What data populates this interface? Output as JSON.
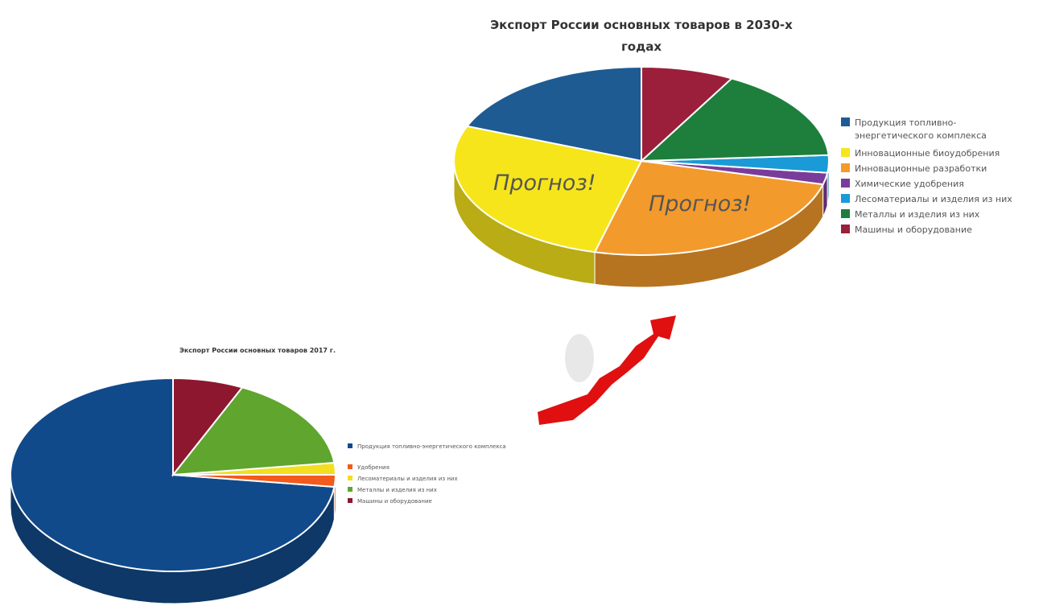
{
  "chart_data": [
    {
      "type": "pie3d",
      "title": "Экспорт России основных товаров в 2030-х годах",
      "categories": [
        "Продукция топливно-энергетического комплекса",
        "Инновационные биоудобрения",
        "Инновационные разработки",
        "Химические удобрения",
        "Лесоматериалы и изделия из них",
        "Металлы и изделия из них",
        "Машины и оборудование"
      ],
      "values": [
        19,
        27,
        25,
        2,
        3,
        16,
        8
      ],
      "colors": [
        "#1f5b93",
        "#f6e51a",
        "#f39a2c",
        "#7a3c9a",
        "#1a9ad6",
        "#1e7e3c",
        "#9b1f3a"
      ],
      "annotations": [
        "Прогноз!",
        "Прогноз!"
      ],
      "legend": "right"
    },
    {
      "type": "pie3d",
      "title": "Экспорт России основных товаров 2017 г.",
      "categories": [
        "Продукция топливно-энергетического комплекса",
        "Удобрения",
        "Лесоматериалы и изделия из них",
        "Металлы и изделия из них",
        "Машины и оборудование"
      ],
      "values": [
        73,
        2,
        2,
        16,
        7
      ],
      "colors": [
        "#114a8b",
        "#f25a1e",
        "#f3df1f",
        "#5fa52e",
        "#8e1730"
      ],
      "legend": "right"
    }
  ]
}
